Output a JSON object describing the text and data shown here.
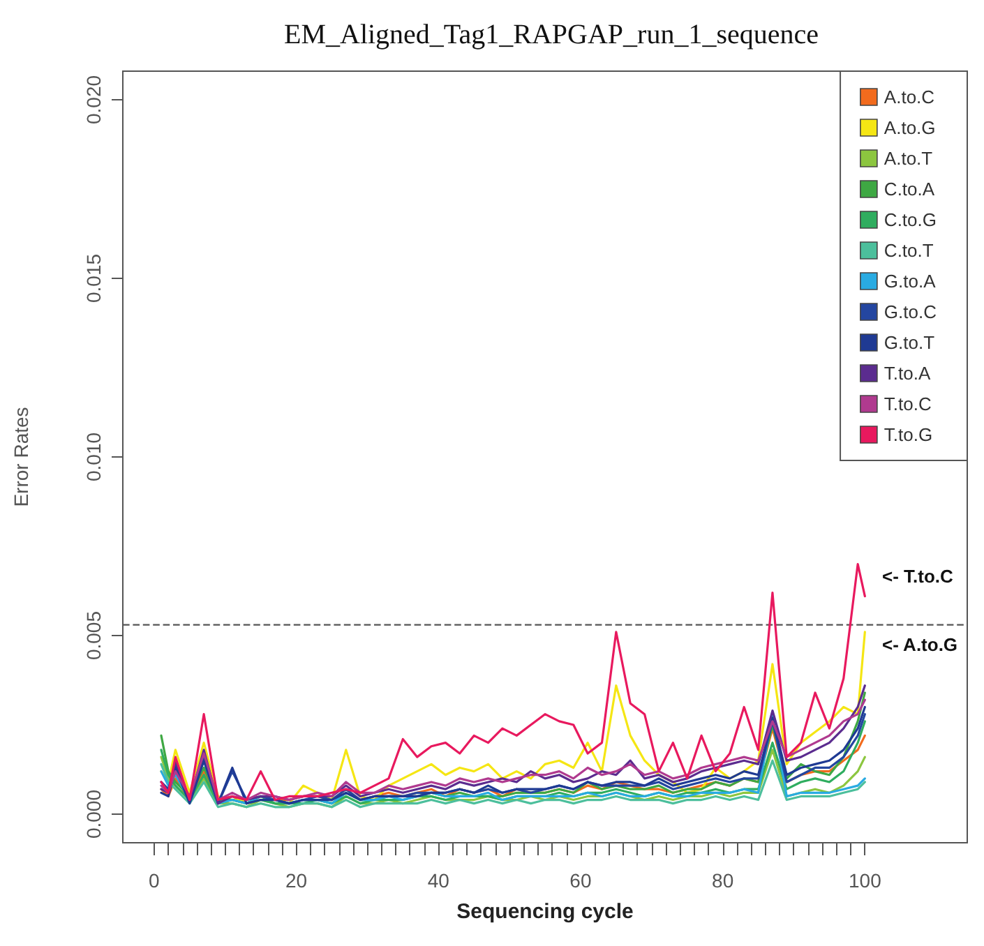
{
  "chart_data": {
    "type": "line",
    "title": "EM_Aligned_Tag1_RAPGAP_run_1_sequence",
    "xlabel": "Sequencing cycle",
    "ylabel": "Error Rates",
    "x": [
      1,
      2,
      3,
      5,
      7,
      9,
      11,
      13,
      15,
      17,
      19,
      21,
      23,
      25,
      27,
      29,
      31,
      33,
      35,
      37,
      39,
      41,
      43,
      45,
      47,
      49,
      51,
      53,
      55,
      57,
      59,
      61,
      63,
      65,
      67,
      69,
      71,
      73,
      75,
      77,
      79,
      81,
      83,
      85,
      87,
      89,
      91,
      93,
      95,
      97,
      99,
      100
    ],
    "series": [
      {
        "name": "A.to.C",
        "color": "#f26b1d",
        "values": [
          0.0007,
          0.0005,
          0.001,
          0.0004,
          0.0012,
          0.0004,
          0.0005,
          0.0003,
          0.0005,
          0.0004,
          0.0004,
          0.0005,
          0.0005,
          0.0004,
          0.0007,
          0.0004,
          0.0005,
          0.0006,
          0.0005,
          0.0006,
          0.0007,
          0.0005,
          0.0007,
          0.0006,
          0.0007,
          0.0005,
          0.0007,
          0.0006,
          0.0006,
          0.0007,
          0.0006,
          0.0008,
          0.0007,
          0.0009,
          0.0008,
          0.0007,
          0.0007,
          0.0006,
          0.0007,
          0.0008,
          0.0009,
          0.0008,
          0.001,
          0.0009,
          0.0024,
          0.0009,
          0.0011,
          0.0012,
          0.0012,
          0.0015,
          0.0018,
          0.0022
        ]
      },
      {
        "name": "A.to.G",
        "color": "#f5e614",
        "values": [
          0.0012,
          0.0009,
          0.0018,
          0.0006,
          0.002,
          0.0005,
          0.0004,
          0.0004,
          0.0005,
          0.0004,
          0.0003,
          0.0008,
          0.0006,
          0.0004,
          0.0018,
          0.0005,
          0.0004,
          0.0008,
          0.001,
          0.0012,
          0.0014,
          0.0011,
          0.0013,
          0.0012,
          0.0014,
          0.001,
          0.0012,
          0.001,
          0.0014,
          0.0015,
          0.0013,
          0.002,
          0.0012,
          0.0036,
          0.0022,
          0.0015,
          0.0011,
          0.0009,
          0.0006,
          0.0007,
          0.0013,
          0.001,
          0.0012,
          0.0015,
          0.0042,
          0.0014,
          0.002,
          0.0023,
          0.0026,
          0.003,
          0.0028,
          0.0051
        ]
      },
      {
        "name": "A.to.T",
        "color": "#8cc63f",
        "values": [
          0.0016,
          0.001,
          0.0008,
          0.0004,
          0.001,
          0.0003,
          0.0003,
          0.0002,
          0.0004,
          0.0003,
          0.0002,
          0.0003,
          0.0003,
          0.0002,
          0.0005,
          0.0003,
          0.0003,
          0.0004,
          0.0003,
          0.0004,
          0.0005,
          0.0004,
          0.0004,
          0.0004,
          0.0005,
          0.0004,
          0.0004,
          0.0005,
          0.0004,
          0.0005,
          0.0004,
          0.0005,
          0.0005,
          0.0006,
          0.0005,
          0.0004,
          0.0005,
          0.0004,
          0.0005,
          0.0005,
          0.0006,
          0.0005,
          0.0006,
          0.0006,
          0.0018,
          0.0005,
          0.0006,
          0.0007,
          0.0006,
          0.0008,
          0.0012,
          0.0016
        ]
      },
      {
        "name": "C.to.A",
        "color": "#3ea843",
        "values": [
          0.0022,
          0.0012,
          0.0009,
          0.0005,
          0.0013,
          0.0004,
          0.0004,
          0.0003,
          0.0005,
          0.0003,
          0.0003,
          0.0004,
          0.0004,
          0.0003,
          0.0006,
          0.0004,
          0.0004,
          0.0005,
          0.0005,
          0.0005,
          0.0006,
          0.0005,
          0.0006,
          0.0005,
          0.0005,
          0.0005,
          0.0006,
          0.0006,
          0.0006,
          0.0007,
          0.0006,
          0.0009,
          0.0007,
          0.0008,
          0.0007,
          0.0007,
          0.0008,
          0.0006,
          0.0007,
          0.0007,
          0.0009,
          0.0008,
          0.001,
          0.0009,
          0.0025,
          0.001,
          0.0014,
          0.0012,
          0.0011,
          0.0016,
          0.0026,
          0.0034
        ]
      },
      {
        "name": "C.to.G",
        "color": "#2fad5f",
        "values": [
          0.0018,
          0.0011,
          0.0008,
          0.0004,
          0.0011,
          0.0003,
          0.0004,
          0.0003,
          0.0004,
          0.0003,
          0.0003,
          0.0003,
          0.0004,
          0.0003,
          0.0005,
          0.0003,
          0.0004,
          0.0004,
          0.0004,
          0.0005,
          0.0005,
          0.0004,
          0.0005,
          0.0005,
          0.0005,
          0.0004,
          0.0005,
          0.0005,
          0.0005,
          0.0006,
          0.0005,
          0.0006,
          0.0006,
          0.0007,
          0.0006,
          0.0005,
          0.0006,
          0.0005,
          0.0006,
          0.0006,
          0.0007,
          0.0006,
          0.0007,
          0.0007,
          0.002,
          0.0007,
          0.0009,
          0.001,
          0.0009,
          0.0012,
          0.002,
          0.0026
        ]
      },
      {
        "name": "C.to.T",
        "color": "#4cbf9c",
        "values": [
          0.0014,
          0.0009,
          0.0007,
          0.0003,
          0.0009,
          0.0002,
          0.0003,
          0.0002,
          0.0003,
          0.0002,
          0.0002,
          0.0003,
          0.0003,
          0.0002,
          0.0004,
          0.0002,
          0.0003,
          0.0003,
          0.0003,
          0.0003,
          0.0004,
          0.0003,
          0.0004,
          0.0003,
          0.0004,
          0.0003,
          0.0004,
          0.0003,
          0.0004,
          0.0004,
          0.0003,
          0.0004,
          0.0004,
          0.0005,
          0.0004,
          0.0004,
          0.0004,
          0.0003,
          0.0004,
          0.0004,
          0.0005,
          0.0004,
          0.0005,
          0.0004,
          0.0015,
          0.0004,
          0.0005,
          0.0005,
          0.0005,
          0.0006,
          0.0007,
          0.0009
        ]
      },
      {
        "name": "G.to.A",
        "color": "#29abe2",
        "values": [
          0.0012,
          0.0008,
          0.0011,
          0.0004,
          0.0015,
          0.0003,
          0.0004,
          0.0003,
          0.0005,
          0.0004,
          0.0003,
          0.0004,
          0.0004,
          0.0003,
          0.0006,
          0.0004,
          0.0004,
          0.0005,
          0.0004,
          0.0005,
          0.0006,
          0.0005,
          0.0005,
          0.0005,
          0.0006,
          0.0004,
          0.0005,
          0.0005,
          0.0005,
          0.0005,
          0.0005,
          0.0006,
          0.0005,
          0.0006,
          0.0005,
          0.0005,
          0.0006,
          0.0005,
          0.0005,
          0.0006,
          0.0006,
          0.0006,
          0.0007,
          0.0006,
          0.0028,
          0.0005,
          0.0006,
          0.0006,
          0.0006,
          0.0007,
          0.0008,
          0.001
        ]
      },
      {
        "name": "G.to.C",
        "color": "#2446a0",
        "values": [
          0.0009,
          0.0007,
          0.0014,
          0.0004,
          0.0016,
          0.0003,
          0.0012,
          0.0004,
          0.0005,
          0.0004,
          0.0003,
          0.0004,
          0.0005,
          0.0004,
          0.0007,
          0.0004,
          0.0005,
          0.0005,
          0.0005,
          0.0006,
          0.0006,
          0.0006,
          0.0007,
          0.0006,
          0.0007,
          0.0006,
          0.0007,
          0.0006,
          0.0007,
          0.0008,
          0.0007,
          0.0009,
          0.0008,
          0.0008,
          0.0008,
          0.0008,
          0.0009,
          0.0007,
          0.0008,
          0.0009,
          0.001,
          0.0009,
          0.001,
          0.001,
          0.0026,
          0.0009,
          0.0011,
          0.0013,
          0.0013,
          0.0016,
          0.0022,
          0.0028
        ]
      },
      {
        "name": "G.to.T",
        "color": "#1f3a93",
        "values": [
          0.0006,
          0.0005,
          0.0013,
          0.0003,
          0.0015,
          0.0003,
          0.0013,
          0.0003,
          0.0004,
          0.0004,
          0.0003,
          0.0004,
          0.0004,
          0.0004,
          0.0006,
          0.0004,
          0.0005,
          0.0005,
          0.0005,
          0.0005,
          0.0006,
          0.0006,
          0.0007,
          0.0006,
          0.0008,
          0.0006,
          0.0007,
          0.0007,
          0.0007,
          0.0008,
          0.0007,
          0.0009,
          0.0008,
          0.0009,
          0.0009,
          0.0008,
          0.001,
          0.0008,
          0.0009,
          0.001,
          0.0011,
          0.001,
          0.0012,
          0.0011,
          0.0027,
          0.0011,
          0.0013,
          0.0014,
          0.0015,
          0.0018,
          0.0024,
          0.003
        ]
      },
      {
        "name": "T.to.A",
        "color": "#5b2c8f",
        "values": [
          0.0007,
          0.0006,
          0.0015,
          0.0004,
          0.0018,
          0.0003,
          0.0005,
          0.0004,
          0.0005,
          0.0005,
          0.0004,
          0.0005,
          0.0005,
          0.0005,
          0.0008,
          0.0005,
          0.0006,
          0.0007,
          0.0006,
          0.0007,
          0.0008,
          0.0007,
          0.0009,
          0.0008,
          0.0009,
          0.001,
          0.0009,
          0.0012,
          0.001,
          0.0011,
          0.0009,
          0.001,
          0.0012,
          0.0011,
          0.0015,
          0.001,
          0.0011,
          0.0009,
          0.001,
          0.0012,
          0.0013,
          0.0014,
          0.0015,
          0.0014,
          0.0029,
          0.0015,
          0.0016,
          0.0018,
          0.002,
          0.0024,
          0.003,
          0.0036
        ]
      },
      {
        "name": "T.to.C",
        "color": "#b03a8f",
        "values": [
          0.0008,
          0.0006,
          0.0012,
          0.0005,
          0.0017,
          0.0004,
          0.0006,
          0.0004,
          0.0006,
          0.0005,
          0.0004,
          0.0005,
          0.0006,
          0.0005,
          0.0009,
          0.0006,
          0.0006,
          0.0008,
          0.0007,
          0.0008,
          0.0009,
          0.0008,
          0.001,
          0.0009,
          0.001,
          0.0009,
          0.001,
          0.0011,
          0.0011,
          0.0012,
          0.001,
          0.0013,
          0.0011,
          0.0012,
          0.0014,
          0.0011,
          0.0012,
          0.001,
          0.0011,
          0.0013,
          0.0014,
          0.0015,
          0.0016,
          0.0015,
          0.0026,
          0.0016,
          0.0018,
          0.002,
          0.0022,
          0.0026,
          0.0028,
          0.0032
        ]
      },
      {
        "name": "T.to.G",
        "color": "#e8195e",
        "values": [
          0.0009,
          0.0006,
          0.0016,
          0.0004,
          0.0028,
          0.0004,
          0.0005,
          0.0004,
          0.0012,
          0.0004,
          0.0005,
          0.0005,
          0.0005,
          0.0006,
          0.0007,
          0.0006,
          0.0008,
          0.001,
          0.0021,
          0.0016,
          0.0019,
          0.002,
          0.0017,
          0.0022,
          0.002,
          0.0024,
          0.0022,
          0.0025,
          0.0028,
          0.0026,
          0.0025,
          0.0017,
          0.002,
          0.0051,
          0.0031,
          0.0028,
          0.0012,
          0.002,
          0.001,
          0.0022,
          0.0012,
          0.0017,
          0.003,
          0.0018,
          0.0062,
          0.0016,
          0.002,
          0.0034,
          0.0024,
          0.0038,
          0.007,
          0.0061
        ]
      }
    ],
    "xlim": [
      -4.4,
      114.4
    ],
    "xticks": [
      0,
      {
        "value": 2,
        "label": null
      },
      {
        "value": 4,
        "label": null
      },
      {
        "value": 6,
        "label": null
      },
      {
        "value": 8,
        "label": null
      },
      {
        "value": 10,
        "label": null
      },
      {
        "value": 12,
        "label": null
      },
      {
        "value": 14,
        "label": null
      },
      {
        "value": 16,
        "label": null
      },
      {
        "value": 18,
        "label": null
      },
      20,
      {
        "value": 22,
        "label": null
      },
      {
        "value": 24,
        "label": null
      },
      {
        "value": 26,
        "label": null
      },
      {
        "value": 28,
        "label": null
      },
      {
        "value": 30,
        "label": null
      },
      {
        "value": 32,
        "label": null
      },
      {
        "value": 34,
        "label": null
      },
      {
        "value": 36,
        "label": null
      },
      {
        "value": 38,
        "label": null
      },
      40,
      {
        "value": 42,
        "label": null
      },
      {
        "value": 44,
        "label": null
      },
      {
        "value": 46,
        "label": null
      },
      {
        "value": 48,
        "label": null
      },
      {
        "value": 50,
        "label": null
      },
      {
        "value": 52,
        "label": null
      },
      {
        "value": 54,
        "label": null
      },
      {
        "value": 56,
        "label": null
      },
      {
        "value": 58,
        "label": null
      },
      60,
      {
        "value": 62,
        "label": null
      },
      {
        "value": 64,
        "label": null
      },
      {
        "value": 66,
        "label": null
      },
      {
        "value": 68,
        "label": null
      },
      {
        "value": 70,
        "label": null
      },
      {
        "value": 72,
        "label": null
      },
      {
        "value": 74,
        "label": null
      },
      {
        "value": 76,
        "label": null
      },
      {
        "value": 78,
        "label": null
      },
      80,
      {
        "value": 82,
        "label": null
      },
      {
        "value": 84,
        "label": null
      },
      {
        "value": 86,
        "label": null
      },
      {
        "value": 88,
        "label": null
      },
      {
        "value": 90,
        "label": null
      },
      {
        "value": 92,
        "label": null
      },
      {
        "value": 94,
        "label": null
      },
      {
        "value": 96,
        "label": null
      },
      {
        "value": 98,
        "label": null
      },
      100
    ],
    "ylim": [
      -0.0008,
      0.0208
    ],
    "yticks": [
      {
        "value": 0,
        "label": "0.000"
      },
      {
        "value": 0.005,
        "label": "0.005"
      },
      {
        "value": 0.01,
        "label": "0.010"
      },
      {
        "value": 0.015,
        "label": "0.015"
      },
      {
        "value": 0.02,
        "label": "0.020"
      }
    ],
    "ref_lines": [
      {
        "axis": "y",
        "value": 0.0053,
        "color": "#555555",
        "line_style": "dashed"
      }
    ],
    "annotations": [
      "<- T.to.C",
      "<- A.to.G"
    ],
    "grid": false,
    "legend": "top right",
    "marker": "none",
    "line_style": "solid"
  }
}
